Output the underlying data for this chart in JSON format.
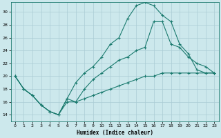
{
  "xlabel": "Humidex (Indice chaleur)",
  "bg_color": "#cce8ec",
  "line_color": "#1a7a6e",
  "grid_color": "#aaccd4",
  "xlim": [
    -0.5,
    23.5
  ],
  "ylim": [
    13,
    31.5
  ],
  "xticks": [
    0,
    1,
    2,
    3,
    4,
    5,
    6,
    7,
    8,
    9,
    10,
    11,
    12,
    13,
    14,
    15,
    16,
    17,
    18,
    19,
    20,
    21,
    22,
    23
  ],
  "yticks": [
    14,
    16,
    18,
    20,
    22,
    24,
    26,
    28,
    30
  ],
  "curve1_x": [
    0,
    1,
    2,
    3,
    4,
    5,
    6,
    7,
    8,
    9,
    10,
    11,
    12,
    13,
    14,
    15,
    16,
    17,
    18,
    19,
    20,
    21,
    22,
    23
  ],
  "curve1_y": [
    20,
    18,
    17,
    15.5,
    14.5,
    14,
    16.5,
    19,
    20.5,
    21.5,
    23,
    25,
    26,
    29,
    31,
    31.5,
    31,
    29.5,
    28.5,
    25,
    23.5,
    21,
    20.5,
    20.5
  ],
  "curve2_x": [
    0,
    1,
    2,
    3,
    4,
    5,
    6,
    7,
    8,
    9,
    10,
    11,
    12,
    13,
    14,
    15,
    16,
    17,
    18,
    19,
    20,
    21,
    22,
    23
  ],
  "curve2_y": [
    20,
    18,
    17,
    15.5,
    14.5,
    14,
    16.5,
    16,
    18,
    19.5,
    20.5,
    21.5,
    22.5,
    23,
    24,
    24.5,
    28.5,
    28.5,
    25,
    24.5,
    23,
    22,
    21.5,
    20.5
  ],
  "curve3_x": [
    0,
    1,
    2,
    3,
    4,
    5,
    6,
    7,
    8,
    9,
    10,
    11,
    12,
    13,
    14,
    15,
    16,
    17,
    18,
    19,
    20,
    21,
    22,
    23
  ],
  "curve3_y": [
    20,
    18,
    17,
    15.5,
    14.5,
    14,
    16,
    16,
    16.5,
    17,
    17.5,
    18,
    18.5,
    19,
    19.5,
    20,
    20,
    20.5,
    20.5,
    20.5,
    20.5,
    20.5,
    20.5,
    20.5
  ]
}
